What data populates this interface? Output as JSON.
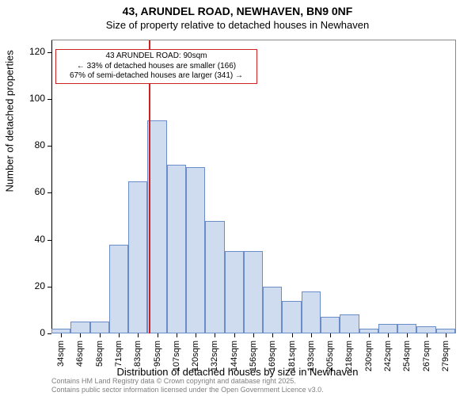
{
  "title_main": "43, ARUNDEL ROAD, NEWHAVEN, BN9 0NF",
  "title_sub": "Size of property relative to detached houses in Newhaven",
  "xlabel": "Distribution of detached houses by size in Newhaven",
  "ylabel": "Number of detached properties",
  "footer_line1": "Contains HM Land Registry data © Crown copyright and database right 2025.",
  "footer_line2": "Contains public sector information licensed under the Open Government Licence v3.0.",
  "chart": {
    "type": "histogram",
    "background_color": "#ffffff",
    "bar_fill": "#cfdcef",
    "bar_stroke": "#6a8cc9",
    "axis_color": "#000000",
    "frame_color": "#888888",
    "ylim": [
      0,
      125
    ],
    "yticks": [
      0,
      20,
      40,
      60,
      80,
      100,
      120
    ],
    "xtick_labels": [
      "34sqm",
      "46sqm",
      "58sqm",
      "71sqm",
      "83sqm",
      "95sqm",
      "107sqm",
      "120sqm",
      "132sqm",
      "144sqm",
      "156sqm",
      "169sqm",
      "181sqm",
      "193sqm",
      "205sqm",
      "218sqm",
      "230sqm",
      "242sqm",
      "254sqm",
      "267sqm",
      "279sqm"
    ],
    "values": [
      2,
      5,
      5,
      38,
      65,
      91,
      72,
      71,
      48,
      35,
      35,
      20,
      14,
      18,
      7,
      8,
      2,
      4,
      4,
      3,
      2
    ],
    "title_fontsize": 14,
    "subtitle_fontsize": 13,
    "label_fontsize": 13,
    "tick_fontsize_y": 12,
    "tick_fontsize_x": 11,
    "footer_fontsize": 9
  },
  "marker": {
    "color": "#cc2222",
    "x_index": 4.55,
    "annotation_lines": [
      "43 ARUNDEL ROAD: 90sqm",
      "← 33% of detached houses are smaller (166)",
      "67% of semi-detached houses are larger (341) →"
    ],
    "annotation_fontsize": 10
  }
}
